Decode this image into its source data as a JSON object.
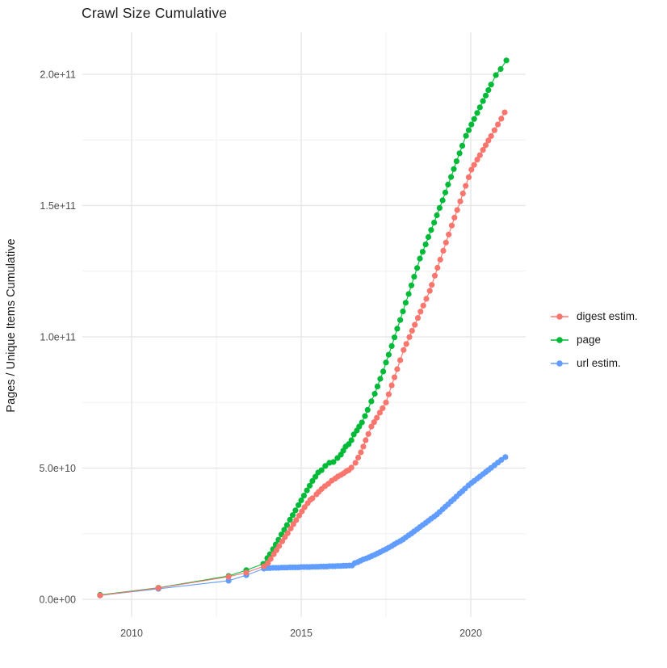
{
  "title": "Crawl Size Cumulative",
  "y_axis": {
    "label": "Pages / Unique Items Cumulative",
    "tick_labels": [
      "0.0e+00",
      "5.0e+10",
      "1.0e+11",
      "1.5e+11",
      "2.0e+11"
    ],
    "major_ticks_e9": [
      0,
      50,
      100,
      150,
      200
    ],
    "minor_ticks_e9": [
      25,
      75,
      125,
      175
    ]
  },
  "x_axis": {
    "tick_labels": [
      "2010",
      "2015",
      "2020"
    ],
    "major_ticks": [
      2010,
      2015,
      2020
    ],
    "minor_ticks": [
      2012.5,
      2017.5
    ]
  },
  "legend": [
    {
      "label": "digest estim.",
      "color": "#F8766D"
    },
    {
      "label": "page",
      "color": "#00BA38"
    },
    {
      "label": "url estim.",
      "color": "#619CFF"
    }
  ],
  "colors": {
    "grid_major": "#e4e4e4",
    "grid_minor": "#f0f0f0",
    "tick_text": "#4d4d4d",
    "title_text": "#1a1a1a"
  },
  "chart_data": {
    "type": "line",
    "title": "Crawl Size Cumulative",
    "xlabel": "",
    "ylabel": "Pages / Unique Items Cumulative",
    "x_unit": "year",
    "y_unit": "pages / unique items (value x 1e9)",
    "xlim": [
      2008.5,
      2021.7
    ],
    "ylim_e9": [
      -10,
      215
    ],
    "grid": "major+minor",
    "legend_position": "right",
    "marker": "point",
    "draw_order": [
      "url estim.",
      "page",
      "digest estim."
    ],
    "series": [
      {
        "name": "url estim.",
        "color": "#619CFF",
        "points_year_value_e9": [
          [
            2009.07,
            1.5
          ],
          [
            2010.79,
            4.0
          ],
          [
            2012.86,
            7.1
          ],
          [
            2013.38,
            9.2
          ],
          [
            2013.9,
            11.7
          ],
          [
            2014.0,
            11.9
          ],
          [
            2014.08,
            11.9
          ],
          [
            2014.17,
            12.0
          ],
          [
            2014.25,
            12.0
          ],
          [
            2014.33,
            12.0
          ],
          [
            2014.42,
            12.1
          ],
          [
            2014.5,
            12.1
          ],
          [
            2014.58,
            12.1
          ],
          [
            2014.67,
            12.2
          ],
          [
            2014.75,
            12.2
          ],
          [
            2014.83,
            12.2
          ],
          [
            2014.92,
            12.2
          ],
          [
            2015.0,
            12.3
          ],
          [
            2015.08,
            12.3
          ],
          [
            2015.17,
            12.3
          ],
          [
            2015.25,
            12.3
          ],
          [
            2015.33,
            12.4
          ],
          [
            2015.42,
            12.4
          ],
          [
            2015.5,
            12.4
          ],
          [
            2015.58,
            12.5
          ],
          [
            2015.67,
            12.5
          ],
          [
            2015.75,
            12.5
          ],
          [
            2015.83,
            12.6
          ],
          [
            2015.92,
            12.6
          ],
          [
            2016.0,
            12.6
          ],
          [
            2016.08,
            12.7
          ],
          [
            2016.17,
            12.7
          ],
          [
            2016.25,
            12.8
          ],
          [
            2016.33,
            12.8
          ],
          [
            2016.42,
            12.9
          ],
          [
            2016.5,
            12.9
          ],
          [
            2016.58,
            13.8
          ],
          [
            2016.67,
            14.2
          ],
          [
            2016.75,
            14.7
          ],
          [
            2016.83,
            15.2
          ],
          [
            2016.92,
            15.6
          ],
          [
            2017.0,
            16.0
          ],
          [
            2017.08,
            16.5
          ],
          [
            2017.17,
            17.0
          ],
          [
            2017.25,
            17.5
          ],
          [
            2017.33,
            18.0
          ],
          [
            2017.42,
            18.6
          ],
          [
            2017.5,
            19.1
          ],
          [
            2017.58,
            19.7
          ],
          [
            2017.67,
            20.3
          ],
          [
            2017.75,
            21.0
          ],
          [
            2017.83,
            21.6
          ],
          [
            2017.92,
            22.2
          ],
          [
            2018.0,
            22.8
          ],
          [
            2018.08,
            23.6
          ],
          [
            2018.17,
            24.4
          ],
          [
            2018.25,
            25.1
          ],
          [
            2018.33,
            25.9
          ],
          [
            2018.42,
            26.7
          ],
          [
            2018.5,
            27.5
          ],
          [
            2018.58,
            28.3
          ],
          [
            2018.67,
            29.1
          ],
          [
            2018.75,
            29.9
          ],
          [
            2018.83,
            30.7
          ],
          [
            2018.92,
            31.5
          ],
          [
            2019.0,
            32.3
          ],
          [
            2019.08,
            33.3
          ],
          [
            2019.17,
            34.3
          ],
          [
            2019.25,
            35.3
          ],
          [
            2019.33,
            36.2
          ],
          [
            2019.42,
            37.3
          ],
          [
            2019.5,
            38.2
          ],
          [
            2019.58,
            39.2
          ],
          [
            2019.67,
            40.3
          ],
          [
            2019.75,
            41.2
          ],
          [
            2019.83,
            42.2
          ],
          [
            2019.93,
            43.4
          ],
          [
            2020.02,
            44.3
          ],
          [
            2020.1,
            45.1
          ],
          [
            2020.19,
            46.0
          ],
          [
            2020.27,
            46.8
          ],
          [
            2020.36,
            47.7
          ],
          [
            2020.44,
            48.5
          ],
          [
            2020.52,
            49.3
          ],
          [
            2020.6,
            50.1
          ],
          [
            2020.7,
            51.1
          ],
          [
            2020.8,
            52.1
          ],
          [
            2020.9,
            53.1
          ],
          [
            2021.02,
            54.2
          ]
        ]
      },
      {
        "name": "page",
        "color": "#00BA38",
        "points_year_value_e9": [
          [
            2009.07,
            1.7
          ],
          [
            2010.79,
            4.4
          ],
          [
            2012.86,
            8.9
          ],
          [
            2013.38,
            11.1
          ],
          [
            2013.88,
            13.5
          ],
          [
            2014.0,
            15.7
          ],
          [
            2014.08,
            17.2
          ],
          [
            2014.17,
            19.1
          ],
          [
            2014.25,
            20.9
          ],
          [
            2014.33,
            22.7
          ],
          [
            2014.42,
            24.7
          ],
          [
            2014.5,
            26.5
          ],
          [
            2014.58,
            28.3
          ],
          [
            2014.67,
            30.3
          ],
          [
            2014.75,
            32.1
          ],
          [
            2014.83,
            33.9
          ],
          [
            2014.92,
            35.9
          ],
          [
            2015.0,
            37.7
          ],
          [
            2015.08,
            39.5
          ],
          [
            2015.17,
            41.5
          ],
          [
            2015.25,
            43.3
          ],
          [
            2015.33,
            45.1
          ],
          [
            2015.42,
            46.7
          ],
          [
            2015.5,
            48.3
          ],
          [
            2015.6,
            49.2
          ],
          [
            2015.71,
            50.8
          ],
          [
            2015.83,
            52.0
          ],
          [
            2015.95,
            52.3
          ],
          [
            2016.07,
            53.8
          ],
          [
            2016.17,
            55.1
          ],
          [
            2016.24,
            56.6
          ],
          [
            2016.31,
            58.2
          ],
          [
            2016.4,
            59.1
          ],
          [
            2016.48,
            60.6
          ],
          [
            2016.55,
            62.8
          ],
          [
            2016.64,
            64.3
          ],
          [
            2016.71,
            65.8
          ],
          [
            2016.79,
            67.4
          ],
          [
            2016.88,
            69.8
          ],
          [
            2016.96,
            72.2
          ],
          [
            2017.07,
            75.4
          ],
          [
            2017.17,
            78.3
          ],
          [
            2017.25,
            81.1
          ],
          [
            2017.33,
            84.0
          ],
          [
            2017.42,
            86.8
          ],
          [
            2017.5,
            90.2
          ],
          [
            2017.58,
            93.2
          ],
          [
            2017.67,
            96.5
          ],
          [
            2017.75,
            99.8
          ],
          [
            2017.83,
            103.1
          ],
          [
            2017.92,
            106.4
          ],
          [
            2018.0,
            109.7
          ],
          [
            2018.08,
            113.0
          ],
          [
            2018.17,
            116.3
          ],
          [
            2018.25,
            119.6
          ],
          [
            2018.33,
            122.9
          ],
          [
            2018.42,
            126.2
          ],
          [
            2018.5,
            129.8
          ],
          [
            2018.58,
            132.4
          ],
          [
            2018.67,
            135.2
          ],
          [
            2018.75,
            138.0
          ],
          [
            2018.83,
            140.7
          ],
          [
            2018.92,
            143.5
          ],
          [
            2019.0,
            146.3
          ],
          [
            2019.08,
            149.1
          ],
          [
            2019.17,
            152.0
          ],
          [
            2019.25,
            155.0
          ],
          [
            2019.33,
            158.0
          ],
          [
            2019.42,
            160.9
          ],
          [
            2019.5,
            163.9
          ],
          [
            2019.58,
            166.9
          ],
          [
            2019.67,
            169.9
          ],
          [
            2019.75,
            172.8
          ],
          [
            2019.86,
            176.6
          ],
          [
            2019.94,
            178.7
          ],
          [
            2020.02,
            180.9
          ],
          [
            2020.1,
            183.0
          ],
          [
            2020.19,
            185.3
          ],
          [
            2020.27,
            187.4
          ],
          [
            2020.36,
            189.8
          ],
          [
            2020.44,
            191.9
          ],
          [
            2020.52,
            194.0
          ],
          [
            2020.6,
            196.1
          ],
          [
            2020.74,
            199.7
          ],
          [
            2020.88,
            202.0
          ],
          [
            2021.05,
            205.3
          ]
        ]
      },
      {
        "name": "digest estim.",
        "color": "#F8766D",
        "points_year_value_e9": [
          [
            2009.07,
            1.5
          ],
          [
            2010.79,
            4.3
          ],
          [
            2012.86,
            8.6
          ],
          [
            2013.38,
            10.2
          ],
          [
            2013.9,
            12.6
          ],
          [
            2014.02,
            13.8
          ],
          [
            2014.1,
            15.4
          ],
          [
            2014.19,
            17.2
          ],
          [
            2014.27,
            18.7
          ],
          [
            2014.35,
            20.3
          ],
          [
            2014.44,
            22.1
          ],
          [
            2014.52,
            23.7
          ],
          [
            2014.6,
            25.2
          ],
          [
            2014.69,
            27.0
          ],
          [
            2014.77,
            28.6
          ],
          [
            2014.85,
            30.2
          ],
          [
            2014.94,
            31.9
          ],
          [
            2015.02,
            33.5
          ],
          [
            2015.1,
            35.1
          ],
          [
            2015.19,
            36.6
          ],
          [
            2015.27,
            37.9
          ],
          [
            2015.33,
            38.5
          ],
          [
            2015.45,
            40.0
          ],
          [
            2015.52,
            41.0
          ],
          [
            2015.6,
            42.0
          ],
          [
            2015.7,
            43.1
          ],
          [
            2015.8,
            44.0
          ],
          [
            2015.9,
            45.2
          ],
          [
            2016.0,
            46.0
          ],
          [
            2016.08,
            46.8
          ],
          [
            2016.17,
            47.4
          ],
          [
            2016.25,
            48.0
          ],
          [
            2016.33,
            48.8
          ],
          [
            2016.4,
            49.2
          ],
          [
            2016.48,
            50.2
          ],
          [
            2016.6,
            52.0
          ],
          [
            2016.68,
            54.0
          ],
          [
            2016.76,
            56.0
          ],
          [
            2016.83,
            58.2
          ],
          [
            2016.9,
            60.6
          ],
          [
            2016.98,
            63.0
          ],
          [
            2017.07,
            65.8
          ],
          [
            2017.15,
            67.5
          ],
          [
            2017.23,
            69.2
          ],
          [
            2017.32,
            71.1
          ],
          [
            2017.4,
            72.8
          ],
          [
            2017.5,
            75.0
          ],
          [
            2017.58,
            78.1
          ],
          [
            2017.67,
            81.5
          ],
          [
            2017.75,
            84.6
          ],
          [
            2017.83,
            87.7
          ],
          [
            2017.92,
            91.1
          ],
          [
            2018.02,
            95.0
          ],
          [
            2018.1,
            97.3
          ],
          [
            2018.19,
            99.9
          ],
          [
            2018.27,
            102.3
          ],
          [
            2018.35,
            104.6
          ],
          [
            2018.44,
            107.2
          ],
          [
            2018.52,
            109.6
          ],
          [
            2018.6,
            111.9
          ],
          [
            2018.69,
            114.5
          ],
          [
            2018.79,
            117.5
          ],
          [
            2018.85,
            119.8
          ],
          [
            2018.94,
            123.3
          ],
          [
            2019.02,
            126.3
          ],
          [
            2019.1,
            129.4
          ],
          [
            2019.19,
            132.8
          ],
          [
            2019.27,
            135.9
          ],
          [
            2019.35,
            139.0
          ],
          [
            2019.44,
            142.4
          ],
          [
            2019.52,
            145.4
          ],
          [
            2019.6,
            148.3
          ],
          [
            2019.69,
            151.6
          ],
          [
            2019.77,
            154.6
          ],
          [
            2019.85,
            157.5
          ],
          [
            2019.94,
            160.8
          ],
          [
            2020.02,
            163.7
          ],
          [
            2020.1,
            165.5
          ],
          [
            2020.19,
            167.5
          ],
          [
            2020.27,
            169.2
          ],
          [
            2020.36,
            171.2
          ],
          [
            2020.44,
            173.0
          ],
          [
            2020.52,
            174.8
          ],
          [
            2020.6,
            176.5
          ],
          [
            2020.7,
            178.7
          ],
          [
            2020.8,
            180.9
          ],
          [
            2020.9,
            183.1
          ],
          [
            2021.0,
            185.5
          ]
        ]
      }
    ]
  }
}
